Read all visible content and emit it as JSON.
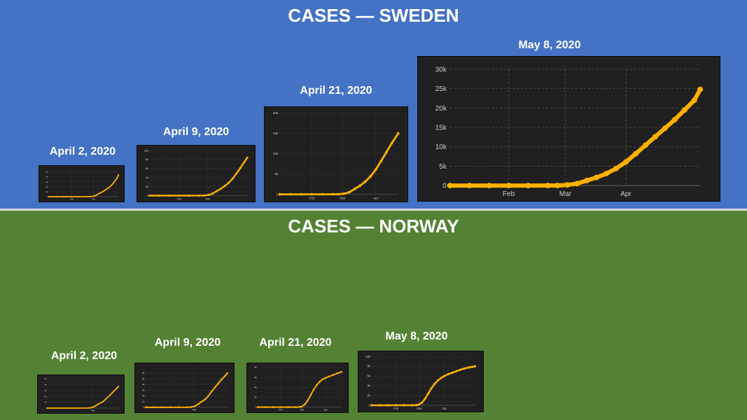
{
  "sections": {
    "sweden": {
      "title": "CASES — SWEDEN"
    },
    "norway": {
      "title": "CASES — NORWAY"
    }
  },
  "colors": {
    "sweden_bg": "#4472C4",
    "norway_bg": "#548235",
    "chart_bg": "#202020",
    "series": "#FFB000",
    "grid": "#555555",
    "text": "#FFFFFF"
  },
  "chart_data": [
    {
      "id": "sweden-apr2",
      "country": "Sweden",
      "title": "April 2, 2020",
      "type": "scatter",
      "xlabel": "",
      "ylabel": "",
      "x_ticks": [
        {
          "x": 30,
          "label": "Feb"
        },
        {
          "x": 59,
          "label": "Mar"
        }
      ],
      "xlim": [
        0,
        92
      ],
      "ylim": [
        0,
        5500
      ],
      "y_ticks": [
        {
          "v": 0,
          "label": "0"
        },
        {
          "v": 1000,
          "label": "1k"
        },
        {
          "v": 2000,
          "label": "2k"
        },
        {
          "v": 3000,
          "label": "3k"
        },
        {
          "v": 4000,
          "label": "4k"
        },
        {
          "v": 5000,
          "label": "5k"
        }
      ],
      "grid": true,
      "x": [
        0,
        10,
        20,
        30,
        40,
        50,
        55,
        60,
        63,
        66,
        69,
        72,
        75,
        78,
        80,
        82,
        84,
        86,
        88,
        90,
        92
      ],
      "values": [
        0,
        0,
        0,
        1,
        1,
        13,
        20,
        160,
        330,
        620,
        850,
        1100,
        1400,
        1700,
        1900,
        2200,
        2500,
        2900,
        3300,
        3700,
        4400
      ]
    },
    {
      "id": "sweden-apr9",
      "country": "Sweden",
      "title": "April 9, 2020",
      "type": "scatter",
      "xlabel": "",
      "ylabel": "",
      "x_ticks": [
        {
          "x": 30,
          "label": "Feb"
        },
        {
          "x": 59,
          "label": "Mar"
        }
      ],
      "xlim": [
        0,
        99
      ],
      "ylim": [
        0,
        10000
      ],
      "y_ticks": [
        {
          "v": 0,
          "label": "0"
        },
        {
          "v": 2000,
          "label": "2k"
        },
        {
          "v": 4000,
          "label": "4k"
        },
        {
          "v": 6000,
          "label": "6k"
        },
        {
          "v": 8000,
          "label": "8k"
        },
        {
          "v": 10000,
          "label": "10k"
        }
      ],
      "grid": true,
      "x": [
        0,
        10,
        20,
        30,
        40,
        50,
        55,
        60,
        64,
        68,
        72,
        76,
        80,
        84,
        88,
        90,
        92,
        94,
        96,
        99
      ],
      "values": [
        0,
        0,
        0,
        1,
        1,
        13,
        20,
        160,
        480,
        1000,
        1500,
        2100,
        2800,
        3700,
        4900,
        5500,
        6100,
        6800,
        7400,
        8400
      ]
    },
    {
      "id": "sweden-apr21",
      "country": "Sweden",
      "title": "April 21, 2020",
      "type": "scatter",
      "xlabel": "",
      "ylabel": "",
      "x_ticks": [
        {
          "x": 30,
          "label": "Feb"
        },
        {
          "x": 59,
          "label": "Mar"
        },
        {
          "x": 90,
          "label": "Apr"
        }
      ],
      "xlim": [
        0,
        111
      ],
      "ylim": [
        0,
        20000
      ],
      "y_ticks": [
        {
          "v": 0,
          "label": "0"
        },
        {
          "v": 5000,
          "label": "5k"
        },
        {
          "v": 10000,
          "label": "10k"
        },
        {
          "v": 15000,
          "label": "15k"
        },
        {
          "v": 20000,
          "label": "20k"
        }
      ],
      "grid": true,
      "x": [
        0,
        10,
        20,
        30,
        40,
        50,
        55,
        60,
        65,
        70,
        75,
        80,
        85,
        90,
        95,
        100,
        105,
        111
      ],
      "values": [
        0,
        0,
        0,
        1,
        1,
        13,
        20,
        160,
        500,
        1300,
        2100,
        3100,
        4400,
        6100,
        8200,
        10400,
        12600,
        15000
      ]
    },
    {
      "id": "sweden-may8",
      "country": "Sweden",
      "title": "May 8, 2020",
      "type": "scatter",
      "xlabel": "",
      "ylabel": "",
      "x_ticks": [
        {
          "x": 30,
          "label": "Feb"
        },
        {
          "x": 59,
          "label": "Mar"
        },
        {
          "x": 90,
          "label": "Apr"
        }
      ],
      "xlim": [
        0,
        128
      ],
      "ylim": [
        0,
        30000
      ],
      "y_ticks": [
        {
          "v": 0,
          "label": "0"
        },
        {
          "v": 5000,
          "label": "5k"
        },
        {
          "v": 10000,
          "label": "10k"
        },
        {
          "v": 15000,
          "label": "15k"
        },
        {
          "v": 20000,
          "label": "20k"
        },
        {
          "v": 25000,
          "label": "25k"
        },
        {
          "v": 30000,
          "label": "30k"
        }
      ],
      "grid": true,
      "x": [
        0,
        10,
        20,
        30,
        40,
        50,
        55,
        60,
        65,
        70,
        75,
        80,
        85,
        90,
        95,
        100,
        105,
        110,
        115,
        120,
        125,
        128
      ],
      "values": [
        0,
        0,
        0,
        1,
        1,
        13,
        20,
        160,
        500,
        1300,
        2100,
        3100,
        4400,
        6100,
        8200,
        10400,
        12600,
        14800,
        17000,
        19500,
        22000,
        24800
      ]
    },
    {
      "id": "norway-apr2",
      "country": "Norway",
      "title": "April 2, 2020",
      "type": "scatter",
      "xlabel": "",
      "ylabel": "",
      "x_ticks": [
        {
          "x": 59,
          "label": "Mar"
        }
      ],
      "xlim": [
        0,
        92
      ],
      "ylim": [
        0,
        5000
      ],
      "y_ticks": [
        {
          "v": 0,
          "label": "0"
        },
        {
          "v": 1000,
          "label": "1k"
        },
        {
          "v": 2000,
          "label": "2k"
        },
        {
          "v": 3000,
          "label": "3k"
        },
        {
          "v": 4000,
          "label": "4k"
        },
        {
          "v": 5000,
          "label": "5k"
        }
      ],
      "grid": true,
      "x": [
        0,
        10,
        20,
        30,
        40,
        50,
        55,
        60,
        63,
        66,
        69,
        72,
        75,
        78,
        81,
        84,
        87,
        90,
        92
      ],
      "values": [
        0,
        0,
        0,
        1,
        1,
        5,
        30,
        220,
        450,
        700,
        900,
        1100,
        1450,
        1800,
        2200,
        2600,
        3000,
        3400,
        3700
      ]
    },
    {
      "id": "norway-apr9",
      "country": "Norway",
      "title": "April 9, 2020",
      "type": "scatter",
      "xlabel": "",
      "ylabel": "",
      "x_ticks": [
        {
          "x": 59,
          "label": "Mar"
        }
      ],
      "xlim": [
        0,
        99
      ],
      "ylim": [
        0,
        7000
      ],
      "y_ticks": [
        {
          "v": 0,
          "label": "0"
        },
        {
          "v": 1000,
          "label": "1k"
        },
        {
          "v": 2000,
          "label": "2k"
        },
        {
          "v": 3000,
          "label": "3k"
        },
        {
          "v": 4000,
          "label": "4k"
        },
        {
          "v": 5000,
          "label": "5k"
        },
        {
          "v": 6000,
          "label": "6k"
        }
      ],
      "grid": true,
      "x": [
        0,
        10,
        20,
        30,
        40,
        50,
        55,
        60,
        64,
        68,
        72,
        76,
        80,
        84,
        88,
        92,
        96,
        99
      ],
      "values": [
        0,
        0,
        0,
        1,
        1,
        5,
        30,
        220,
        600,
        1000,
        1400,
        2000,
        2800,
        3500,
        4200,
        4900,
        5500,
        6000
      ]
    },
    {
      "id": "norway-apr21",
      "country": "Norway",
      "title": "April 21, 2020",
      "type": "scatter",
      "xlabel": "",
      "ylabel": "",
      "x_ticks": [
        {
          "x": 30,
          "label": "Feb"
        },
        {
          "x": 59,
          "label": "Mar"
        },
        {
          "x": 90,
          "label": "Apr"
        }
      ],
      "xlim": [
        0,
        111
      ],
      "ylim": [
        0,
        8000
      ],
      "y_ticks": [
        {
          "v": 0,
          "label": "0"
        },
        {
          "v": 2000,
          "label": "2k"
        },
        {
          "v": 4000,
          "label": "4k"
        },
        {
          "v": 6000,
          "label": "6k"
        },
        {
          "v": 8000,
          "label": "8k"
        }
      ],
      "grid": true,
      "x": [
        0,
        10,
        20,
        30,
        40,
        50,
        55,
        58,
        62,
        66,
        70,
        74,
        78,
        82,
        86,
        90,
        95,
        100,
        105,
        111
      ],
      "values": [
        0,
        0,
        0,
        1,
        1,
        5,
        30,
        100,
        500,
        1300,
        2400,
        3500,
        4400,
        5100,
        5600,
        5900,
        6200,
        6500,
        6800,
        7100
      ]
    },
    {
      "id": "norway-may8",
      "country": "Norway",
      "title": "May 8, 2020",
      "type": "scatter",
      "xlabel": "",
      "ylabel": "",
      "x_ticks": [
        {
          "x": 30,
          "label": "Feb"
        },
        {
          "x": 59,
          "label": "Mar"
        },
        {
          "x": 90,
          "label": "Apr"
        }
      ],
      "xlim": [
        0,
        128
      ],
      "ylim": [
        0,
        10000
      ],
      "y_ticks": [
        {
          "v": 0,
          "label": "0"
        },
        {
          "v": 2000,
          "label": "2k"
        },
        {
          "v": 4000,
          "label": "4k"
        },
        {
          "v": 6000,
          "label": "6k"
        },
        {
          "v": 8000,
          "label": "8k"
        },
        {
          "v": 10000,
          "label": "10k"
        }
      ],
      "grid": true,
      "x": [
        0,
        10,
        20,
        30,
        40,
        50,
        55,
        58,
        62,
        66,
        70,
        74,
        78,
        82,
        86,
        90,
        95,
        100,
        105,
        110,
        115,
        120,
        125,
        128
      ],
      "values": [
        0,
        0,
        0,
        1,
        1,
        5,
        30,
        100,
        500,
        1300,
        2400,
        3500,
        4400,
        5100,
        5600,
        6000,
        6400,
        6700,
        7000,
        7300,
        7550,
        7750,
        7900,
        8000
      ]
    }
  ]
}
